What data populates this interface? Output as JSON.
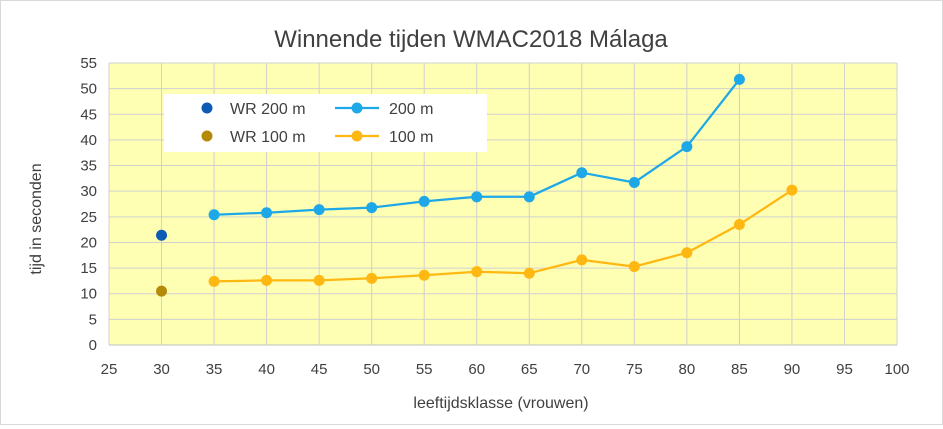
{
  "chart_data": {
    "type": "line",
    "title": "Winnende tijden WMAC2018 Málaga",
    "xlabel": "leeftijdsklasse (vrouwen)",
    "ylabel": "tijd in seconden",
    "xlim": [
      25,
      100
    ],
    "ylim": [
      0,
      55
    ],
    "xticks": [
      25,
      30,
      35,
      40,
      45,
      50,
      55,
      60,
      65,
      70,
      75,
      80,
      85,
      90,
      95,
      100
    ],
    "yticks": [
      0,
      5,
      10,
      15,
      20,
      25,
      30,
      35,
      40,
      45,
      50,
      55
    ],
    "grid": true,
    "legend_position": "top-left",
    "plot_background": "#ffffb3",
    "series": [
      {
        "name": "WR 200 m",
        "kind": "markers",
        "color": "#0f5ab5",
        "points": [
          [
            30,
            21.4
          ]
        ]
      },
      {
        "name": "200 m",
        "kind": "line",
        "color": "#1fa8e8",
        "points": [
          [
            35,
            25.4
          ],
          [
            40,
            25.8
          ],
          [
            45,
            26.4
          ],
          [
            50,
            26.8
          ],
          [
            55,
            28.0
          ],
          [
            60,
            28.9
          ],
          [
            65,
            28.9
          ],
          [
            70,
            33.6
          ],
          [
            75,
            31.7
          ],
          [
            80,
            38.7
          ],
          [
            85,
            51.8
          ]
        ]
      },
      {
        "name": "WR 100 m",
        "kind": "markers",
        "color": "#b58a0a",
        "points": [
          [
            30,
            10.5
          ]
        ]
      },
      {
        "name": "100 m",
        "kind": "line",
        "color": "#ffb812",
        "points": [
          [
            35,
            12.4
          ],
          [
            40,
            12.6
          ],
          [
            45,
            12.6
          ],
          [
            50,
            13.0
          ],
          [
            55,
            13.6
          ],
          [
            60,
            14.3
          ],
          [
            65,
            14.0
          ],
          [
            70,
            16.6
          ],
          [
            75,
            15.3
          ],
          [
            80,
            18.0
          ],
          [
            85,
            23.5
          ],
          [
            90,
            30.2
          ]
        ]
      }
    ],
    "legend": [
      {
        "name": "WR 200 m",
        "color": "#0f5ab5",
        "kind": "markers"
      },
      {
        "name": "200 m",
        "color": "#1fa8e8",
        "kind": "line"
      },
      {
        "name": "WR 100 m",
        "color": "#b58a0a",
        "kind": "markers"
      },
      {
        "name": "100 m",
        "color": "#ffb812",
        "kind": "line"
      }
    ]
  }
}
